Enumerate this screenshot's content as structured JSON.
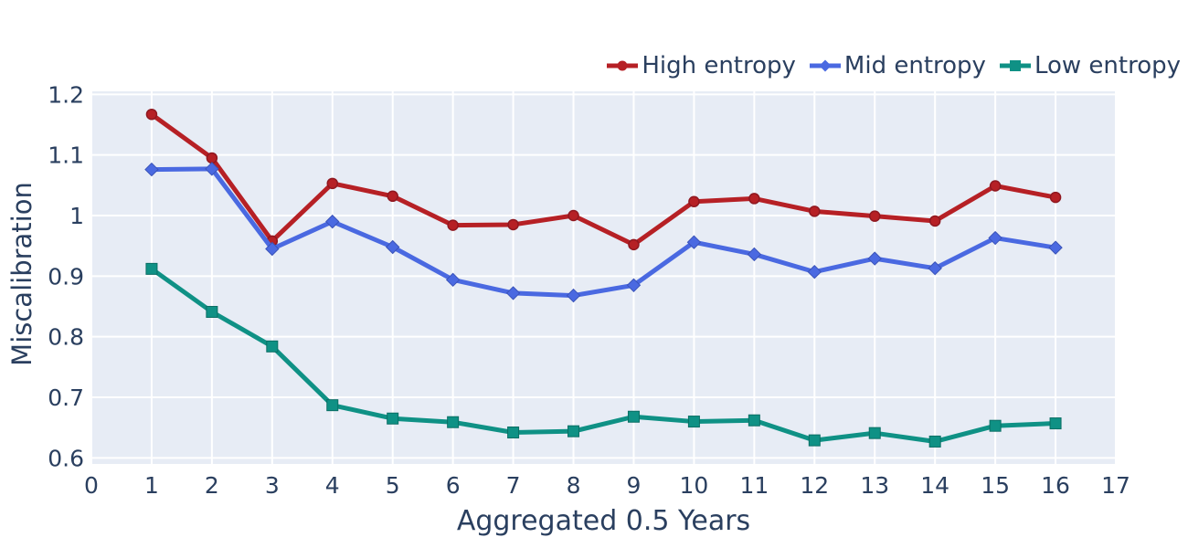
{
  "figure": {
    "background": "#ffffff",
    "plot_background": "#e7ecf5",
    "grid_color": "#ffffff",
    "text_color": "#2a3f5f"
  },
  "chart_data": {
    "type": "line",
    "title": "",
    "xlabel": "Aggregated 0.5 Years",
    "ylabel": "Miscalibration",
    "xlim": [
      0,
      17
    ],
    "ylim": [
      0.59,
      1.205
    ],
    "x_ticks": [
      0,
      1,
      2,
      3,
      4,
      5,
      6,
      7,
      8,
      9,
      10,
      11,
      12,
      13,
      14,
      15,
      16,
      17
    ],
    "y_ticks": [
      0.6,
      0.7,
      0.8,
      0.9,
      1,
      1.1,
      1.2
    ],
    "y_tick_labels": [
      "0.6",
      "0.7",
      "0.8",
      "0.9",
      "1",
      "1.1",
      "1.2"
    ],
    "grid": true,
    "legend_position": "top-right",
    "x": [
      1,
      2,
      3,
      4,
      5,
      6,
      7,
      8,
      9,
      10,
      11,
      12,
      13,
      14,
      15,
      16
    ],
    "series": [
      {
        "name": "High entropy",
        "color": "#b62025",
        "edge_color": "#8f1820",
        "marker": "circle",
        "values": [
          1.167,
          1.095,
          0.958,
          1.053,
          1.032,
          0.984,
          0.985,
          1.0,
          0.952,
          1.023,
          1.028,
          1.007,
          0.999,
          0.991,
          1.049,
          1.03
        ]
      },
      {
        "name": "Mid entropy",
        "color": "#4a69e1",
        "edge_color": "#3a53b8",
        "marker": "diamond",
        "values": [
          1.076,
          1.077,
          0.945,
          0.99,
          0.948,
          0.894,
          0.872,
          0.868,
          0.885,
          0.956,
          0.936,
          0.907,
          0.929,
          0.913,
          0.963,
          0.947
        ]
      },
      {
        "name": "Low entropy",
        "color": "#0f9185",
        "edge_color": "#0a6e64",
        "marker": "square",
        "values": [
          0.912,
          0.841,
          0.784,
          0.687,
          0.665,
          0.659,
          0.642,
          0.644,
          0.668,
          0.66,
          0.662,
          0.629,
          0.641,
          0.627,
          0.653,
          0.657
        ]
      }
    ]
  }
}
